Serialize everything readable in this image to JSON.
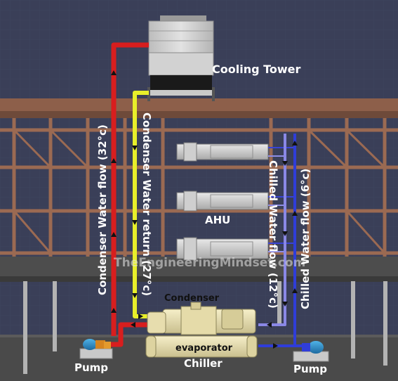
{
  "labels": {
    "cooling_tower": "Cooling Tower",
    "ahu": "AHU",
    "condenser": "Condenser",
    "evaporator": "evaporator",
    "chiller": "Chiller",
    "pump_left": "Pump",
    "pump_right": "Pump",
    "condenser_water_flow": "Condenser Water flow (32°c)",
    "condenser_water_return": "Condenser Water return (27°c)",
    "chilled_water_flow_return": "Chilled Water flow (12°c)",
    "chilled_water_flow_supply": "Chilled Water flow (6°c)",
    "watermark": "TheEngineeringMindset.com"
  },
  "colors": {
    "background": "#3a3f58",
    "floor": "#4a4a4a",
    "girder": "#9b6a52",
    "column": "#b0b0b0",
    "condenser_flow_pipe": "#d81e1e",
    "condenser_return_pipe": "#e8ef2a",
    "chilled_supply_pipe": "#2f3dd9",
    "chilled_return_pipe": "#8a88e6",
    "chiller_body": "#ece3b4"
  }
}
